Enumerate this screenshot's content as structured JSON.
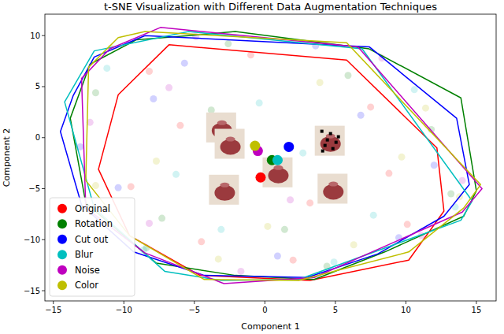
{
  "chart_data": {
    "type": "scatter",
    "title": "t-SNE Visualization with Different Data Augmentation Techniques",
    "x_label": "Component 1",
    "y_label": "Component 2",
    "xlim": [
      -15.6,
      16.4
    ],
    "ylim": [
      -16.0,
      12.1
    ],
    "xticks": [
      {
        "value": -15,
        "label": "−15"
      },
      {
        "value": -10,
        "label": "−10"
      },
      {
        "value": -5,
        "label": "−5"
      },
      0,
      5,
      10,
      15
    ],
    "yticks": [
      {
        "value": -15,
        "label": "−15"
      },
      {
        "value": -10,
        "label": "−10"
      },
      {
        "value": -5,
        "label": "−5"
      },
      0,
      5,
      10
    ],
    "legend": "lower left",
    "grid": false,
    "marker": "circle",
    "series": [
      {
        "name": "Original",
        "color": "#ff0000",
        "x": [
          -8.2,
          -4.5,
          -1.0,
          3.2,
          7.5,
          10.1,
          -6.0,
          2.0,
          8.8,
          -9.5
        ],
        "values": [
          6.5,
          -10.2,
          8.1,
          -6.4,
          3.0,
          -8.5,
          1.2,
          -12.0,
          -3.5,
          -4.8
        ],
        "centroid_x": -0.3,
        "centroid_y": -3.9,
        "hull_x": [
          -6.8,
          5.8,
          12.2,
          12.7,
          10.2,
          3.2,
          -4.6,
          -9.6,
          -11.8,
          -10.4
        ],
        "hull_y": [
          9.1,
          7.6,
          -1.0,
          -7.2,
          -12.0,
          -14.0,
          -13.5,
          -9.6,
          -3.1,
          4.2
        ]
      },
      {
        "name": "Rotation",
        "color": "#008000",
        "x": [
          -12.0,
          -7.3,
          -2.6,
          1.4,
          5.9,
          11.8,
          13.2,
          -8.4,
          4.4,
          -3.8
        ],
        "values": [
          4.4,
          -7.9,
          9.2,
          -9.0,
          6.1,
          0.8,
          -5.5,
          -10.8,
          -12.6,
          2.7
        ],
        "centroid_x": 0.5,
        "centroid_y": -2.2,
        "hull_x": [
          -5.4,
          -2.1,
          7.4,
          13.9,
          15.0,
          14.1,
          8.5,
          3.5,
          -2.1,
          -7.7,
          -12.7,
          -13.8,
          -12.4,
          -9.1
        ],
        "hull_y": [
          10.0,
          10.4,
          8.7,
          3.9,
          -5.2,
          -7.7,
          -11.2,
          -13.9,
          -13.5,
          -12.3,
          -6.4,
          1.9,
          7.2,
          9.6
        ]
      },
      {
        "name": "Cut out",
        "color": "#0000ff",
        "x": [
          -13.1,
          -5.7,
          0.9,
          6.8,
          12.0,
          -10.4,
          3.6,
          9.5,
          -2.2,
          -7.9
        ],
        "values": [
          -0.9,
          7.3,
          -11.6,
          2.2,
          -2.7,
          -4.9,
          9.0,
          -9.8,
          -5.2,
          3.8
        ],
        "centroid_x": 1.7,
        "centroid_y": -0.9,
        "hull_x": [
          -8.5,
          7.4,
          13.6,
          14.5,
          12.7,
          8.0,
          3.0,
          -4.3,
          -9.3,
          -13.0,
          -14.5,
          -13.6,
          -12.1
        ],
        "hull_y": [
          10.0,
          8.9,
          1.9,
          -4.6,
          -7.7,
          -11.4,
          -13.7,
          -13.5,
          -11.2,
          -6.6,
          0.6,
          4.1,
          7.9
        ]
      },
      {
        "name": "Blur",
        "color": "#00bfbf",
        "x": [
          -11.2,
          -6.3,
          -0.4,
          4.9,
          10.6,
          13.5,
          -8.6,
          2.7,
          7.7,
          -3.1
        ],
        "values": [
          6.8,
          -3.6,
          3.4,
          -12.2,
          4.7,
          -6.8,
          -11.0,
          -1.5,
          -7.6,
          -9.0
        ],
        "centroid_x": 0.9,
        "centroid_y": -2.2,
        "hull_x": [
          -5.4,
          6.9,
          14.7,
          13.9,
          2.4,
          -3.1,
          -7.1,
          -12.1,
          -14.2,
          -12.1
        ],
        "hull_y": [
          10.4,
          8.7,
          -6.2,
          -8.1,
          -13.9,
          -14.0,
          -13.1,
          -6.9,
          3.5,
          8.5
        ]
      },
      {
        "name": "Noise",
        "color": "#bf00bf",
        "x": [
          -12.4,
          -4.9,
          1.8,
          8.3,
          14.0,
          -8.2,
          -1.7,
          5.2,
          11.1,
          -6.8
        ],
        "values": [
          1.5,
          9.9,
          -6.1,
          7.8,
          -4.2,
          -8.4,
          -13.1,
          0.4,
          -9.6,
          4.9
        ],
        "centroid_x": -0.5,
        "centroid_y": -1.3,
        "hull_x": [
          -7.4,
          6.6,
          15.4,
          14.0,
          3.5,
          -2.9,
          -8.5,
          -12.7,
          -13.0,
          -11.0
        ],
        "hull_y": [
          10.8,
          8.9,
          -5.0,
          -7.3,
          -13.7,
          -14.3,
          -11.3,
          -6.9,
          5.8,
          8.7
        ]
      },
      {
        "name": "Color",
        "color": "#bfbf00",
        "x": [
          -10.9,
          -3.3,
          3.9,
          9.7,
          13.8,
          -7.7,
          0.2,
          6.3,
          -12.0,
          11.4
        ],
        "values": [
          8.8,
          -11.9,
          5.4,
          -1.9,
          -5.8,
          -2.3,
          -8.7,
          -10.5,
          -4.7,
          2.9
        ],
        "centroid_x": -0.7,
        "centroid_y": -0.8,
        "hull_x": [
          -8.5,
          5.8,
          15.3,
          14.1,
          10.2,
          2.4,
          -4.3,
          -9.6,
          -12.7,
          -12.5,
          -10.4
        ],
        "hull_y": [
          10.4,
          9.3,
          -4.6,
          -6.9,
          -11.2,
          -14.0,
          -13.9,
          -9.6,
          -4.2,
          6.9,
          9.8
        ]
      }
    ]
  }
}
